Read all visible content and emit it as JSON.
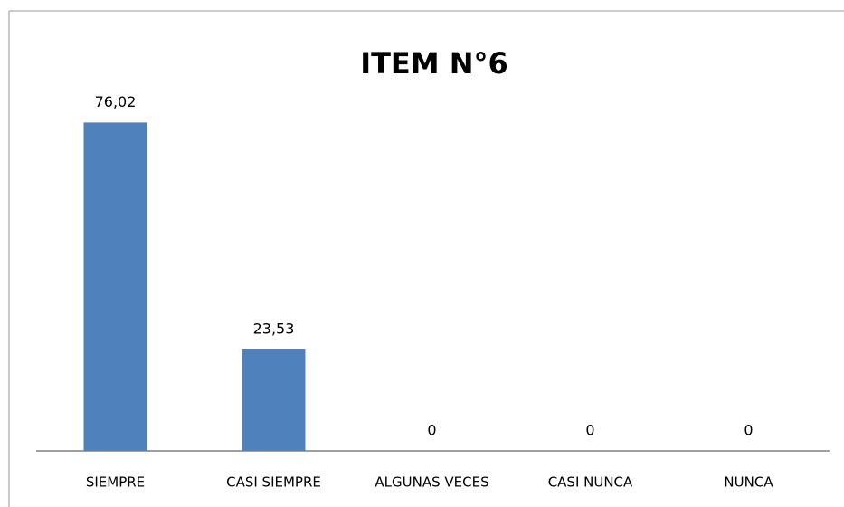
{
  "chart_data": {
    "type": "bar",
    "title": "ITEM N°6",
    "categories": [
      "SIEMPRE",
      "CASI SIEMPRE",
      "ALGUNAS VECES",
      "CASI NUNCA",
      "NUNCA"
    ],
    "values": [
      76.02,
      23.53,
      0,
      0,
      0
    ],
    "value_labels": [
      "76,02",
      "23,53",
      "0",
      "0",
      "0"
    ],
    "color": "#4f81bd"
  }
}
